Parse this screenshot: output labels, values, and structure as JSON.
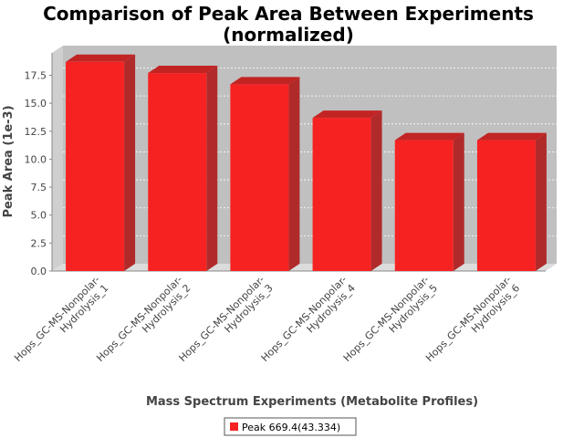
{
  "chart_data": {
    "type": "bar",
    "title_line1": "Comparison of Peak Area Between Experiments",
    "title_line2": "(normalized)",
    "xlabel": "Mass Spectrum Experiments (Metabolite Profiles)",
    "ylabel": "Peak Area (1e-3)",
    "ylim": [
      0,
      19.5
    ],
    "yticks": [
      "0.0",
      "2.5",
      "5.0",
      "7.5",
      "10.0",
      "12.5",
      "15.0",
      "17.5"
    ],
    "categories": [
      [
        "Hops_GC-MS-Nonpolar-",
        "Hydrolysis_1"
      ],
      [
        "Hops_GC-MS-Nonpolar-",
        "Hydrolysis_2"
      ],
      [
        "Hops_GC-MS-Nonpolar-",
        "Hydrolysis_3"
      ],
      [
        "Hops_GC-MS-Nonpolar-",
        "Hydrolysis_4"
      ],
      [
        "Hops_GC-MS-Nonpolar-",
        "Hydrolysis_5"
      ],
      [
        "Hops_GC-MS-Nonpolar-",
        "Hydrolysis_6"
      ]
    ],
    "series": [
      {
        "name": "Peak 669.4(43.334)",
        "values": [
          18.7,
          17.7,
          16.7,
          13.7,
          11.7,
          11.7
        ]
      }
    ],
    "grid": true,
    "legend_position": "bottom",
    "colors": {
      "bar_front": "#f62222",
      "bar_top": "#c22424",
      "bar_side": "#b12a2a",
      "plot_bg": "#c0c0c0",
      "plot_wall": "#cfcfcf",
      "plot_floor": "#dcdcdc",
      "grid": "#ffffff"
    }
  }
}
